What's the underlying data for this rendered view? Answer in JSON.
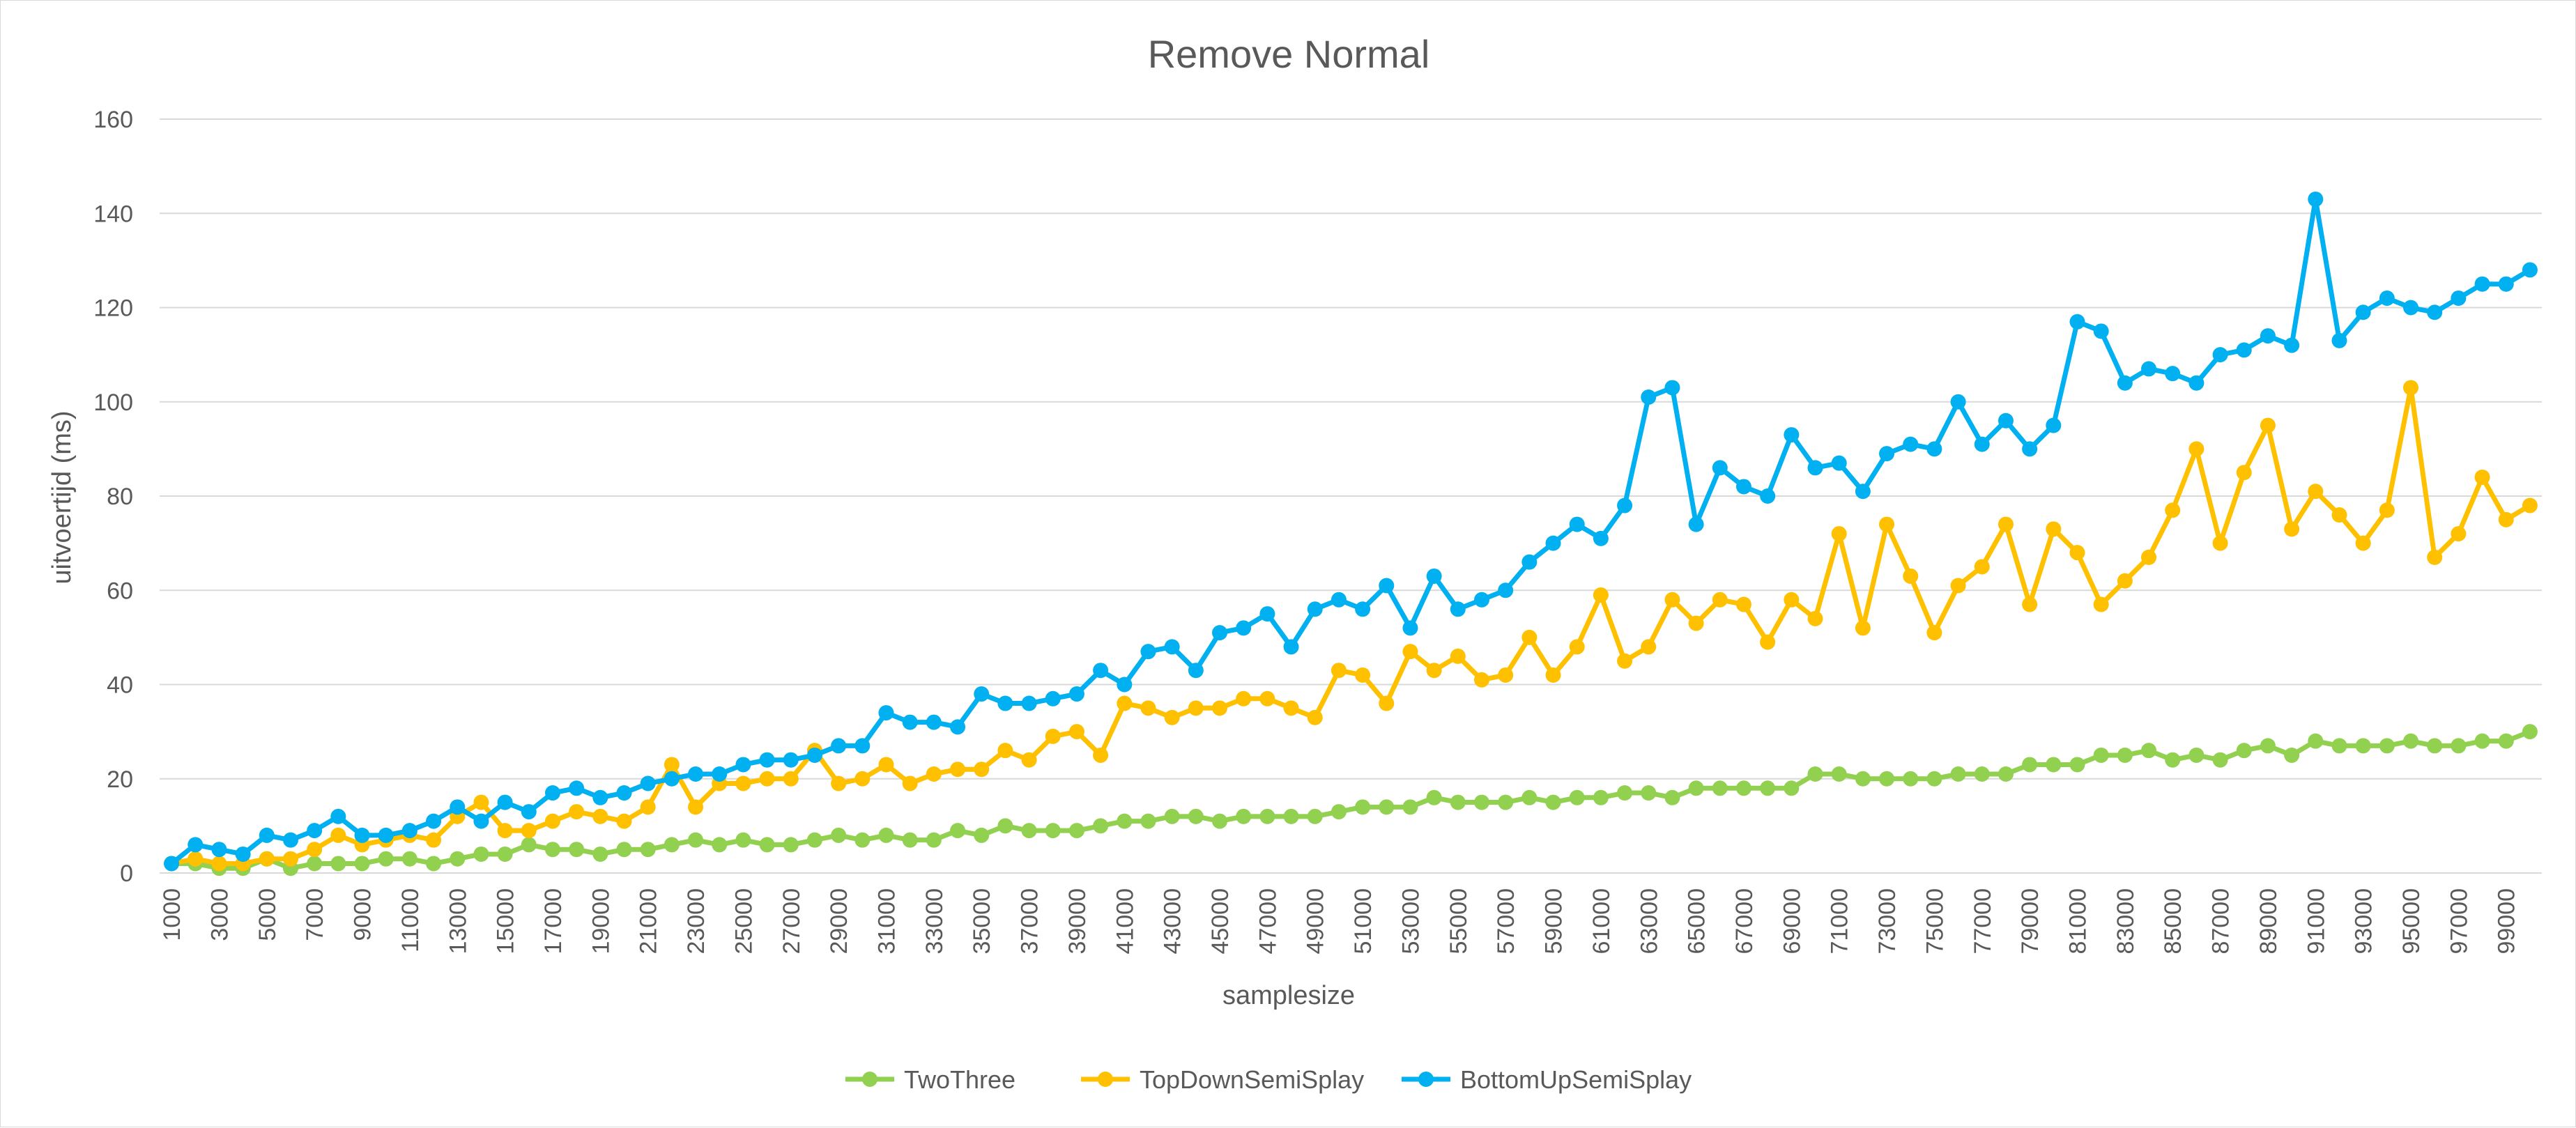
{
  "chart_data": {
    "type": "line",
    "title": "Remove Normal",
    "xlabel": "samplesize",
    "ylabel": "uitvoertijd (ms)",
    "ylim": [
      0,
      160
    ],
    "yticks": [
      0,
      20,
      40,
      60,
      80,
      100,
      120,
      140,
      160
    ],
    "grid": true,
    "legend_position": "bottom",
    "x": [
      1000,
      2000,
      3000,
      4000,
      5000,
      6000,
      7000,
      8000,
      9000,
      10000,
      11000,
      12000,
      13000,
      14000,
      15000,
      16000,
      17000,
      18000,
      19000,
      20000,
      21000,
      22000,
      23000,
      24000,
      25000,
      26000,
      27000,
      28000,
      29000,
      30000,
      31000,
      32000,
      33000,
      34000,
      35000,
      36000,
      37000,
      38000,
      39000,
      40000,
      41000,
      42000,
      43000,
      44000,
      45000,
      46000,
      47000,
      48000,
      49000,
      50000,
      51000,
      52000,
      53000,
      54000,
      55000,
      56000,
      57000,
      58000,
      59000,
      60000,
      61000,
      62000,
      63000,
      64000,
      65000,
      66000,
      67000,
      68000,
      69000,
      70000,
      71000,
      72000,
      73000,
      74000,
      75000,
      76000,
      77000,
      78000,
      79000,
      80000,
      81000,
      82000,
      83000,
      84000,
      85000,
      86000,
      87000,
      88000,
      89000,
      90000,
      91000,
      92000,
      93000,
      94000,
      95000,
      96000,
      97000,
      98000,
      99000,
      100000
    ],
    "x_tick_labels": [
      "1000",
      "3000",
      "5000",
      "7000",
      "9000",
      "11000",
      "13000",
      "15000",
      "17000",
      "19000",
      "21000",
      "23000",
      "25000",
      "27000",
      "29000",
      "31000",
      "33000",
      "35000",
      "37000",
      "39000",
      "41000",
      "43000",
      "45000",
      "47000",
      "49000",
      "51000",
      "53000",
      "55000",
      "57000",
      "59000",
      "61000",
      "63000",
      "65000",
      "67000",
      "69000",
      "71000",
      "73000",
      "75000",
      "77000",
      "79000",
      "81000",
      "83000",
      "85000",
      "87000",
      "89000",
      "91000",
      "93000",
      "95000",
      "97000",
      "99000"
    ],
    "series": [
      {
        "name": "TwoThree",
        "color": "#92d050",
        "values": [
          2,
          2,
          1,
          1,
          3,
          1,
          2,
          2,
          2,
          3,
          3,
          2,
          3,
          4,
          4,
          6,
          5,
          5,
          4,
          5,
          5,
          6,
          7,
          6,
          7,
          6,
          6,
          7,
          8,
          7,
          8,
          7,
          7,
          9,
          8,
          10,
          9,
          9,
          9,
          10,
          11,
          11,
          12,
          12,
          11,
          12,
          12,
          12,
          12,
          13,
          14,
          14,
          14,
          16,
          15,
          15,
          15,
          16,
          15,
          16,
          16,
          17,
          17,
          16,
          18,
          18,
          18,
          18,
          18,
          21,
          21,
          20,
          20,
          20,
          20,
          21,
          21,
          21,
          23,
          23,
          23,
          25,
          25,
          26,
          24,
          25,
          24,
          26,
          27,
          25,
          28,
          27,
          27,
          27,
          28,
          27,
          27,
          28,
          28,
          30
        ]
      },
      {
        "name": "TopDownSemiSplay",
        "color": "#ffc000",
        "values": [
          2,
          3,
          2,
          2,
          3,
          3,
          5,
          8,
          6,
          7,
          8,
          7,
          12,
          15,
          9,
          9,
          11,
          13,
          12,
          11,
          14,
          23,
          14,
          19,
          19,
          20,
          20,
          26,
          19,
          20,
          23,
          19,
          21,
          22,
          22,
          26,
          24,
          29,
          30,
          25,
          36,
          35,
          33,
          35,
          35,
          37,
          37,
          35,
          33,
          43,
          42,
          36,
          47,
          43,
          46,
          41,
          42,
          50,
          42,
          48,
          59,
          45,
          48,
          58,
          53,
          58,
          57,
          49,
          58,
          54,
          72,
          52,
          74,
          63,
          51,
          61,
          65,
          74,
          57,
          73,
          68,
          57,
          62,
          67,
          77,
          90,
          70,
          85,
          95,
          73,
          81,
          76,
          70,
          77,
          103,
          67,
          72,
          84,
          75,
          78
        ]
      },
      {
        "name": "BottomUpSemiSplay",
        "color": "#00b0f0",
        "values": [
          2,
          6,
          5,
          4,
          8,
          7,
          9,
          12,
          8,
          8,
          9,
          11,
          14,
          11,
          15,
          13,
          17,
          18,
          16,
          17,
          19,
          20,
          21,
          21,
          23,
          24,
          24,
          25,
          27,
          27,
          34,
          32,
          32,
          31,
          38,
          36,
          36,
          37,
          38,
          43,
          40,
          47,
          48,
          43,
          51,
          52,
          55,
          48,
          56,
          58,
          56,
          61,
          52,
          63,
          56,
          58,
          60,
          66,
          70,
          74,
          71,
          78,
          101,
          103,
          74,
          86,
          82,
          80,
          93,
          86,
          87,
          81,
          89,
          91,
          90,
          100,
          91,
          96,
          90,
          95,
          117,
          115,
          104,
          107,
          106,
          104,
          110,
          111,
          114,
          112,
          143,
          113,
          119,
          122,
          120,
          119,
          122,
          125,
          125,
          128
        ]
      }
    ]
  }
}
